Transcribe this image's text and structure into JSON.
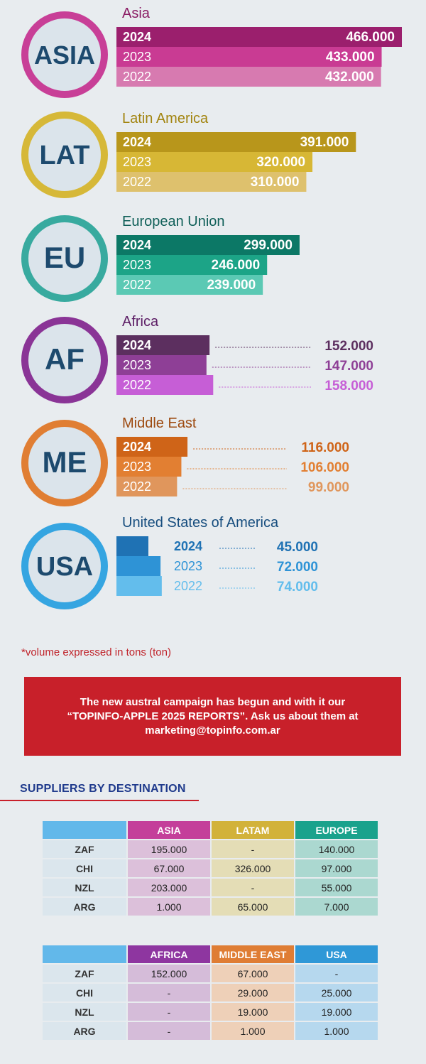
{
  "chart_data": {
    "type": "bar",
    "orientation": "horizontal",
    "years": [
      "2024",
      "2023",
      "2022"
    ],
    "regions": [
      {
        "badge": "ASIA",
        "name": "Asia",
        "values": [
          466000,
          433000,
          432000
        ],
        "labels": [
          "466.000",
          "433.000",
          "432.000"
        ],
        "colors": [
          "#9b1f6d",
          "#c93b93",
          "#d77ab0"
        ],
        "badge_color": "#c83f97",
        "name_color": "#8a1a63"
      },
      {
        "badge": "LAT",
        "name": "Latin America",
        "values": [
          391000,
          320000,
          310000
        ],
        "labels": [
          "391.000",
          "320.000",
          "310.000"
        ],
        "colors": [
          "#b8961b",
          "#d7b735",
          "#dec16d"
        ],
        "badge_color": "#d6b838",
        "name_color": "#a2840f"
      },
      {
        "badge": "EU",
        "name": "European Union",
        "values": [
          299000,
          246000,
          239000
        ],
        "labels": [
          "299.000",
          "246.000",
          "239.000"
        ],
        "colors": [
          "#0c7866",
          "#1ca487",
          "#5bc9b4"
        ],
        "badge_color": "#38aa9f",
        "name_color": "#0f5f58"
      },
      {
        "badge": "AF",
        "name": "Africa",
        "values": [
          152000,
          147000,
          158000
        ],
        "labels": [
          "152.000",
          "147.000",
          "158.000"
        ],
        "colors": [
          "#5c2f5f",
          "#8e3f96",
          "#c65ed6"
        ],
        "badge_color": "#8a3496",
        "name_color": "#5d1e66"
      },
      {
        "badge": "ME",
        "name": "Middle East",
        "values": [
          116000,
          106000,
          99000
        ],
        "labels": [
          "116.000",
          "106.000",
          "99.000"
        ],
        "colors": [
          "#cf6418",
          "#e27f32",
          "#e0965c"
        ],
        "badge_color": "#e07e33",
        "name_color": "#9d4a10"
      },
      {
        "badge": "USA",
        "name": "United States of America",
        "values": [
          45000,
          72000,
          74000
        ],
        "labels": [
          "45.000",
          "72.000",
          "74.000"
        ],
        "colors": [
          "#1f72b4",
          "#2e93d6",
          "#63bdec"
        ],
        "badge_color": "#35a5e1",
        "name_color": "#164d7e"
      }
    ]
  },
  "note": "*volume expressed in tons (ton)",
  "banner": "The new austral campaign has begun and with it our “TOPINFO-APPLE 2025 REPORTS”. Ask us about them at marketing@topinfo.com.ar",
  "suppliers": {
    "title": "SUPPLIERS BY DESTINATION",
    "tables": [
      {
        "headers": [
          "ASIA",
          "LATAM",
          "EUROPE"
        ],
        "header_colors": [
          "#c43f9a",
          "#d2b23a",
          "#1aa28c"
        ],
        "cell_colors": [
          "#dcc0da",
          "#e4ddb6",
          "#abd8d0"
        ],
        "rows": [
          {
            "label": "ZAF",
            "values": [
              "195.000",
              "-",
              "140.000"
            ]
          },
          {
            "label": "CHI",
            "values": [
              "67.000",
              "326.000",
              "97.000"
            ]
          },
          {
            "label": "NZL",
            "values": [
              "203.000",
              "-",
              "55.000"
            ]
          },
          {
            "label": "ARG",
            "values": [
              "1.000",
              "65.000",
              "7.000"
            ]
          }
        ]
      },
      {
        "headers": [
          "AFRICA",
          "MIDDLE EAST",
          "USA"
        ],
        "header_colors": [
          "#8e36a0",
          "#df7d34",
          "#2f98d7"
        ],
        "cell_colors": [
          "#d5bcd9",
          "#eed0b8",
          "#b6d8ee"
        ],
        "rows": [
          {
            "label": "ZAF",
            "values": [
              "152.000",
              "67.000",
              "-"
            ]
          },
          {
            "label": "CHI",
            "values": [
              "-",
              "29.000",
              "25.000"
            ]
          },
          {
            "label": "NZL",
            "values": [
              "-",
              "19.000",
              "19.000"
            ]
          },
          {
            "label": "ARG",
            "values": [
              "-",
              "1.000",
              "1.000"
            ]
          }
        ]
      }
    ]
  }
}
